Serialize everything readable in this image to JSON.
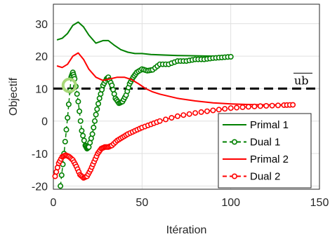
{
  "chart_data": {
    "type": "line",
    "xlabel": "Itération",
    "ylabel": "Objectif",
    "xlim": [
      0,
      150
    ],
    "ylim": [
      -21,
      36
    ],
    "xticks": [
      0,
      50,
      100,
      150
    ],
    "yticks": [
      -20,
      -10,
      0,
      10,
      20,
      30
    ],
    "grid": true,
    "legend_position": "bottom-right",
    "reference_line": {
      "y": 10,
      "label": "ub",
      "color": "#000000",
      "style": "dashed"
    },
    "highlight_marker": {
      "x": 9,
      "y": 11,
      "color": "#a8d87a"
    },
    "series": [
      {
        "name": "Primal 1",
        "color": "#008000",
        "style": "solid",
        "marker": "none",
        "x": [
          2,
          5,
          8,
          11,
          14,
          17,
          20,
          24,
          28,
          31,
          34,
          38,
          42,
          46,
          50,
          55,
          60,
          70,
          80,
          90,
          100
        ],
        "y": [
          25,
          25.5,
          27,
          29.5,
          30.5,
          29,
          26.5,
          24,
          24.8,
          24.8,
          23.5,
          22,
          21.2,
          20.8,
          20.8,
          20.5,
          20.4,
          20.2,
          20.1,
          20.0,
          19.8
        ]
      },
      {
        "name": "Dual 1",
        "color": "#008000",
        "style": "dashed",
        "marker": "circle",
        "x": [
          4,
          6,
          8,
          10,
          11,
          12,
          14,
          16,
          18,
          19,
          20,
          22,
          24,
          26,
          28,
          30,
          31,
          33,
          35,
          37,
          39,
          41,
          43,
          45,
          47,
          50,
          53,
          56,
          60,
          65,
          70,
          75,
          80,
          85,
          90,
          95,
          100
        ],
        "y": [
          -20,
          -10,
          1,
          13.5,
          15,
          13,
          6,
          -3,
          -7.5,
          -8.5,
          -8,
          -4,
          2,
          7,
          11,
          13,
          13.5,
          11,
          7,
          5.5,
          6,
          8,
          11.5,
          13.5,
          15,
          16,
          15.5,
          15.8,
          17.5,
          17.5,
          18.5,
          18.5,
          19,
          19,
          19.4,
          19.6,
          19.8
        ]
      },
      {
        "name": "Primal 2",
        "color": "#ff0000",
        "style": "solid",
        "marker": "none",
        "x": [
          2,
          5,
          8,
          11,
          14,
          17,
          20,
          24,
          28,
          32,
          36,
          40,
          44,
          48,
          52,
          56,
          60,
          70,
          80,
          90,
          100,
          110,
          120,
          135
        ],
        "y": [
          17,
          16.5,
          17.5,
          20,
          21,
          19,
          16,
          13.5,
          12.5,
          13,
          13.5,
          13.5,
          12.8,
          11.5,
          10,
          9,
          8.3,
          7,
          6.2,
          5.6,
          5.3,
          5.1,
          5.0,
          5.0
        ]
      },
      {
        "name": "Dual 2",
        "color": "#ff0000",
        "style": "dashed",
        "marker": "circle",
        "x": [
          1,
          3,
          5,
          7,
          9,
          11,
          13,
          15,
          17,
          19,
          21,
          23,
          25,
          27,
          29,
          31,
          33,
          36,
          39,
          42,
          46,
          50,
          55,
          60,
          70,
          80,
          90,
          100,
          110,
          120,
          130,
          135
        ],
        "y": [
          -17,
          -13,
          -11,
          -10.5,
          -11,
          -12,
          -14,
          -16.5,
          -17.5,
          -17,
          -15,
          -12.5,
          -10,
          -8.5,
          -8,
          -8,
          -7.5,
          -6,
          -5,
          -4,
          -3,
          -2,
          -1,
          0,
          1.5,
          2.5,
          3.3,
          4,
          4.4,
          4.7,
          4.9,
          5.0
        ]
      }
    ]
  }
}
